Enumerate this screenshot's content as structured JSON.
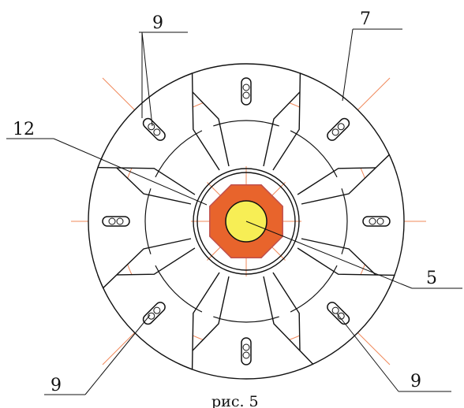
{
  "labels": {
    "top_left": "9",
    "top_right": "7",
    "left": "12",
    "right": "5",
    "bottom_left": "9",
    "bottom_right": "9"
  },
  "caption": "рис. 5",
  "colors": {
    "ink": "#111111",
    "axis": "#f0885a",
    "hub_outer": "#e8642c",
    "hub_rim": "#c0504d",
    "shaft": "#f7ee55"
  },
  "segment_count": 8
}
